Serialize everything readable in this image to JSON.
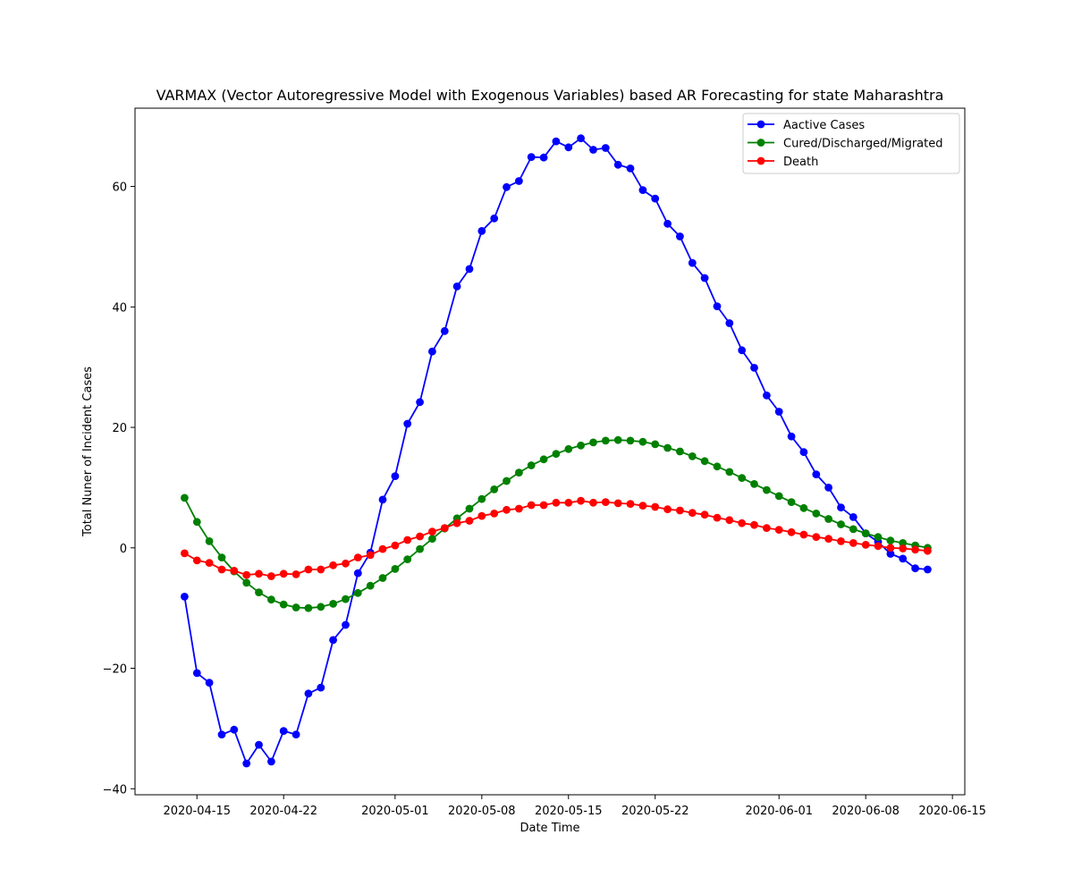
{
  "chart_data": {
    "type": "line",
    "title": "VARMAX (Vector Autoregressive Model with Exogenous Variables) based AR Forecasting for state Maharashtra",
    "xlabel": "Date Time",
    "ylabel": "Total Nuner of Incident Cases",
    "x_start": "2020-04-14",
    "x_end": "2020-06-13",
    "xlim": [
      "2020-04-10",
      "2020-06-16"
    ],
    "ylim": [
      -41,
      73
    ],
    "x_ticks": [
      "2020-04-15",
      "2020-04-22",
      "2020-05-01",
      "2020-05-08",
      "2020-05-15",
      "2020-05-22",
      "2020-06-01",
      "2020-06-08",
      "2020-06-15"
    ],
    "y_ticks": [
      -40,
      -20,
      0,
      20,
      40,
      60
    ],
    "y_tick_labels": [
      "−40",
      "−20",
      "0",
      "20",
      "40",
      "60"
    ],
    "grid": false,
    "legend_position": "top-right",
    "series": [
      {
        "name": "Aactive Cases",
        "color": "#0000ff",
        "values": [
          -8.1,
          -20.8,
          -22.4,
          -31.0,
          -30.2,
          -35.8,
          -32.7,
          -35.5,
          -30.4,
          -31.0,
          -24.2,
          -23.2,
          -15.3,
          -12.8,
          -4.2,
          -0.8,
          8.0,
          11.9,
          20.6,
          24.2,
          32.6,
          36.0,
          43.4,
          46.3,
          52.6,
          54.7,
          59.9,
          60.9,
          64.9,
          64.8,
          67.5,
          66.5,
          68.0,
          66.1,
          66.4,
          63.6,
          63.0,
          59.4,
          58.0,
          53.8,
          51.7,
          47.3,
          44.8,
          40.1,
          37.3,
          32.8,
          29.9,
          25.3,
          22.6,
          18.5,
          15.9,
          12.2,
          10.0,
          6.7,
          5.1,
          2.4,
          1.0,
          -1.0,
          -1.8,
          -3.4,
          -3.6
        ]
      },
      {
        "name": "Cured/Discharged/Migrated",
        "color": "#008000",
        "values": [
          8.3,
          4.3,
          1.1,
          -1.6,
          -3.9,
          -5.8,
          -7.4,
          -8.6,
          -9.4,
          -9.9,
          -10.0,
          -9.8,
          -9.3,
          -8.5,
          -7.5,
          -6.3,
          -5.0,
          -3.5,
          -1.9,
          -0.2,
          1.5,
          3.2,
          4.9,
          6.5,
          8.1,
          9.7,
          11.1,
          12.5,
          13.7,
          14.7,
          15.6,
          16.4,
          17.0,
          17.5,
          17.8,
          17.9,
          17.8,
          17.6,
          17.2,
          16.6,
          16.0,
          15.2,
          14.4,
          13.5,
          12.6,
          11.6,
          10.6,
          9.6,
          8.6,
          7.6,
          6.6,
          5.7,
          4.8,
          3.9,
          3.1,
          2.4,
          1.8,
          1.2,
          0.8,
          0.4,
          0.0
        ]
      },
      {
        "name": "Death",
        "color": "#ff0000",
        "values": [
          -0.9,
          -2.1,
          -2.5,
          -3.6,
          -3.8,
          -4.5,
          -4.3,
          -4.7,
          -4.3,
          -4.4,
          -3.6,
          -3.6,
          -2.9,
          -2.6,
          -1.6,
          -1.2,
          -0.2,
          0.4,
          1.3,
          1.9,
          2.7,
          3.3,
          4.1,
          4.5,
          5.3,
          5.7,
          6.3,
          6.5,
          7.1,
          7.1,
          7.5,
          7.5,
          7.8,
          7.5,
          7.6,
          7.4,
          7.3,
          7.0,
          6.8,
          6.4,
          6.2,
          5.8,
          5.5,
          5.0,
          4.6,
          4.1,
          3.8,
          3.3,
          3.0,
          2.6,
          2.2,
          1.8,
          1.5,
          1.1,
          0.8,
          0.5,
          0.3,
          0.0,
          -0.1,
          -0.3,
          -0.5
        ]
      }
    ]
  }
}
